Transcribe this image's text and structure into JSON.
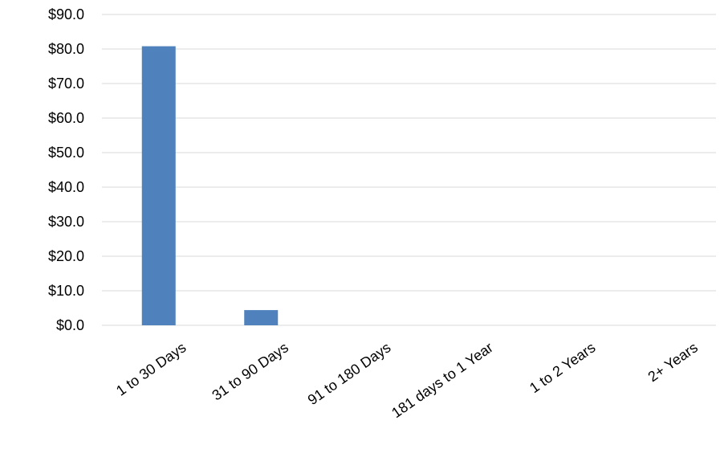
{
  "chart_data": {
    "type": "bar",
    "title": "",
    "xlabel": "",
    "ylabel": "",
    "categories": [
      "1 to 30 Days",
      "31 to 90 Days",
      "91 to 180 Days",
      "181 days to 1 Year",
      "1 to 2 Years",
      "2+ Years"
    ],
    "values": [
      80.8,
      4.4,
      0,
      0,
      0,
      0
    ],
    "ylim": [
      0,
      90
    ],
    "yticks": [
      0,
      10,
      20,
      30,
      40,
      50,
      60,
      70,
      80,
      90
    ],
    "ytick_labels": [
      "$0.0",
      "$10.0",
      "$20.0",
      "$30.0",
      "$40.0",
      "$50.0",
      "$60.0",
      "$70.0",
      "$80.0",
      "$90.0"
    ],
    "grid": true,
    "legend": "none",
    "colors": {
      "bar": "#4f81bd",
      "grid": "#d9d9d9",
      "axis": "#d9d9d9"
    }
  }
}
